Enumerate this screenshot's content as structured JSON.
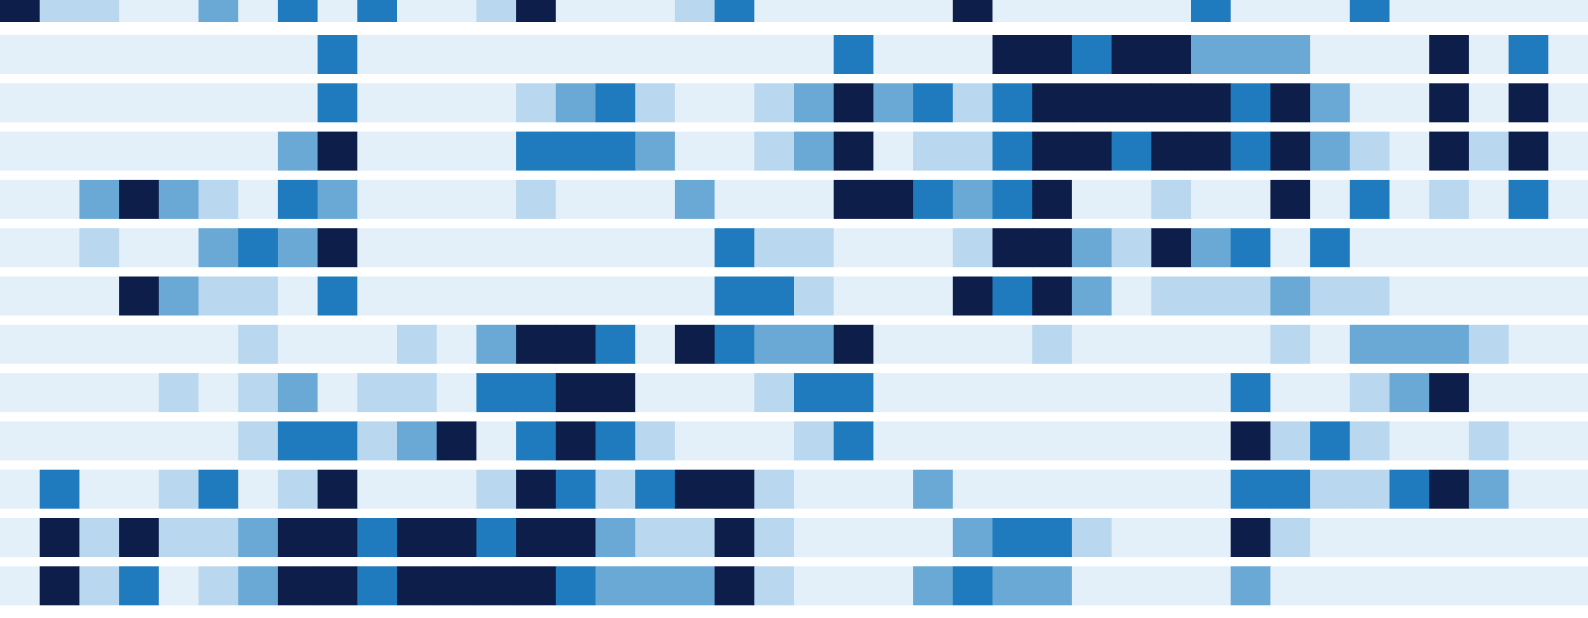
{
  "chart_data": {
    "type": "heatmap",
    "colors": [
      "#e3f0fa",
      "#b9d7ee",
      "#6aa9d6",
      "#1f7bbd",
      "#0d1e4a"
    ],
    "rows": [
      [
        4,
        1,
        1,
        0,
        0,
        2,
        0,
        3,
        0,
        3,
        0,
        0,
        1,
        4,
        0,
        0,
        0,
        1,
        3,
        0,
        0,
        0,
        0,
        0,
        4,
        0,
        0,
        0,
        0,
        0,
        3,
        0,
        0,
        0,
        3,
        0,
        0,
        0,
        0,
        0
      ],
      [
        0,
        0,
        0,
        0,
        0,
        0,
        0,
        0,
        3,
        0,
        0,
        0,
        0,
        0,
        0,
        0,
        0,
        0,
        0,
        0,
        0,
        3,
        0,
        0,
        0,
        4,
        4,
        3,
        4,
        4,
        2,
        2,
        2,
        0,
        0,
        0,
        4,
        0,
        3,
        0
      ],
      [
        0,
        0,
        0,
        0,
        0,
        0,
        0,
        0,
        3,
        0,
        0,
        0,
        0,
        1,
        2,
        3,
        1,
        0,
        0,
        1,
        2,
        4,
        2,
        3,
        1,
        3,
        4,
        4,
        4,
        4,
        4,
        3,
        4,
        2,
        0,
        0,
        4,
        0,
        4,
        0
      ],
      [
        0,
        0,
        0,
        0,
        0,
        0,
        0,
        2,
        4,
        0,
        0,
        0,
        0,
        3,
        3,
        3,
        2,
        0,
        0,
        1,
        2,
        4,
        0,
        1,
        1,
        3,
        4,
        4,
        3,
        4,
        4,
        3,
        4,
        2,
        1,
        0,
        4,
        1,
        4,
        0
      ],
      [
        0,
        0,
        2,
        4,
        2,
        1,
        0,
        3,
        2,
        0,
        0,
        0,
        0,
        1,
        0,
        0,
        0,
        2,
        0,
        0,
        0,
        4,
        4,
        3,
        2,
        3,
        4,
        0,
        0,
        1,
        0,
        0,
        4,
        0,
        3,
        0,
        1,
        0,
        3,
        0
      ],
      [
        0,
        0,
        1,
        0,
        0,
        2,
        3,
        2,
        4,
        0,
        0,
        0,
        0,
        0,
        0,
        0,
        0,
        0,
        3,
        1,
        1,
        0,
        0,
        0,
        1,
        4,
        4,
        2,
        1,
        4,
        2,
        3,
        0,
        3,
        0,
        0,
        0,
        0,
        0,
        0
      ],
      [
        0,
        0,
        0,
        4,
        2,
        1,
        1,
        0,
        3,
        0,
        0,
        0,
        0,
        0,
        0,
        0,
        0,
        0,
        3,
        3,
        1,
        0,
        0,
        0,
        4,
        3,
        4,
        2,
        0,
        1,
        1,
        1,
        2,
        1,
        1,
        0,
        0,
        0,
        0,
        0
      ],
      [
        0,
        0,
        0,
        0,
        0,
        0,
        1,
        0,
        0,
        0,
        1,
        0,
        2,
        4,
        4,
        3,
        0,
        4,
        3,
        2,
        2,
        4,
        0,
        0,
        0,
        0,
        1,
        0,
        0,
        0,
        0,
        0,
        1,
        0,
        2,
        2,
        2,
        1,
        0,
        0
      ],
      [
        0,
        0,
        0,
        0,
        1,
        0,
        1,
        2,
        0,
        1,
        1,
        0,
        3,
        3,
        4,
        4,
        0,
        0,
        0,
        1,
        3,
        3,
        0,
        0,
        0,
        0,
        0,
        0,
        0,
        0,
        0,
        3,
        0,
        0,
        1,
        2,
        4,
        0,
        0,
        0
      ],
      [
        0,
        0,
        0,
        0,
        0,
        0,
        1,
        3,
        3,
        1,
        2,
        4,
        0,
        3,
        4,
        3,
        1,
        0,
        0,
        0,
        1,
        3,
        0,
        0,
        0,
        0,
        0,
        0,
        0,
        0,
        0,
        4,
        1,
        3,
        1,
        0,
        0,
        1,
        0,
        0
      ],
      [
        0,
        3,
        0,
        0,
        1,
        3,
        0,
        1,
        4,
        0,
        0,
        0,
        1,
        4,
        3,
        1,
        3,
        4,
        4,
        1,
        0,
        0,
        0,
        2,
        0,
        0,
        0,
        0,
        0,
        0,
        0,
        3,
        3,
        1,
        1,
        3,
        4,
        2,
        0,
        0
      ],
      [
        0,
        4,
        1,
        4,
        1,
        1,
        2,
        4,
        4,
        3,
        4,
        4,
        3,
        4,
        4,
        2,
        1,
        1,
        4,
        1,
        0,
        0,
        0,
        0,
        2,
        3,
        3,
        1,
        0,
        0,
        0,
        4,
        1,
        0,
        0,
        0,
        0,
        0,
        0,
        0
      ],
      [
        0,
        4,
        1,
        3,
        0,
        1,
        2,
        4,
        4,
        3,
        4,
        4,
        4,
        4,
        3,
        2,
        2,
        2,
        4,
        1,
        0,
        0,
        0,
        2,
        3,
        2,
        2,
        0,
        0,
        0,
        0,
        2,
        0,
        0,
        0,
        0,
        0,
        0,
        0,
        0
      ]
    ]
  }
}
